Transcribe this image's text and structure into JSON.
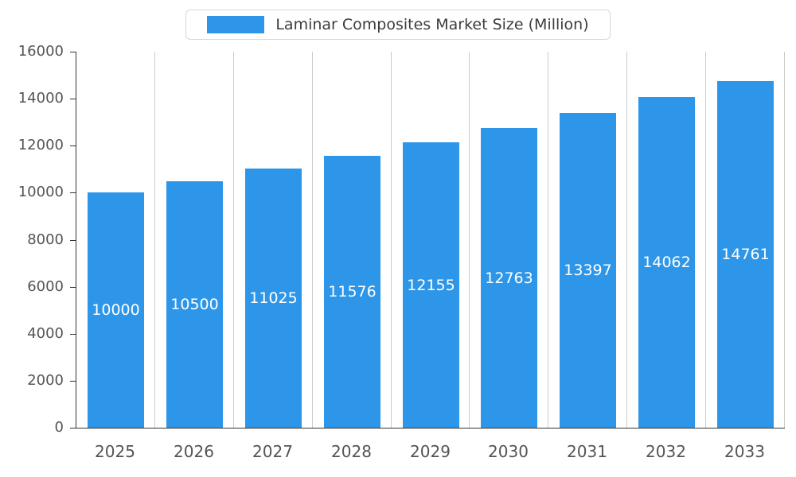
{
  "legend": {
    "label": "Laminar Composites Market Size (Million)"
  },
  "chart_data": {
    "type": "bar",
    "title": "Laminar Composites Market Size (Million)",
    "categories": [
      "2025",
      "2026",
      "2027",
      "2028",
      "2029",
      "2030",
      "2031",
      "2032",
      "2033"
    ],
    "values": [
      10000,
      10500,
      11025,
      11576,
      12155,
      12763,
      13397,
      14062,
      14761
    ],
    "xlabel": "",
    "ylabel": "",
    "ylim": [
      0,
      16000
    ],
    "ytick_step": 2000,
    "ytick_labels": [
      "0",
      "2000",
      "4000",
      "6000",
      "8000",
      "10000",
      "12000",
      "14000",
      "16000"
    ],
    "grid": "vertical",
    "legend_position": "top-center",
    "bar_color": "#2E96E8",
    "bar_label_color": "#ffffff",
    "axis_label_color": "#545454",
    "gridline_color": "#cccccc"
  }
}
